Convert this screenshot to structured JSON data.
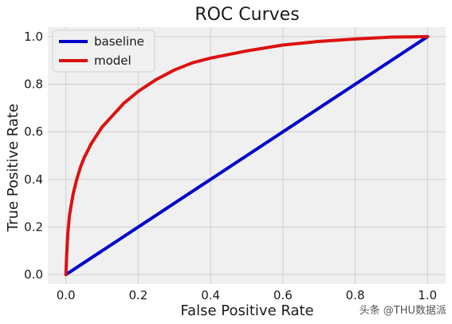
{
  "chart_data": {
    "type": "line",
    "title": "ROC Curves",
    "xlabel": "False Positive Rate",
    "ylabel": "True Positive Rate",
    "xlim": [
      -0.05,
      1.05
    ],
    "ylim": [
      -0.04,
      1.04
    ],
    "xticks": [
      0.0,
      0.2,
      0.4,
      0.6,
      0.8,
      1.0
    ],
    "xtick_labels": [
      "0.0",
      "0.2",
      "0.4",
      "0.6",
      "0.8",
      "1.0"
    ],
    "yticks": [
      0.0,
      0.2,
      0.4,
      0.6,
      0.8,
      1.0
    ],
    "ytick_labels": [
      "0.0",
      "0.2",
      "0.4",
      "0.6",
      "0.8",
      "1.0"
    ],
    "grid": true,
    "legend": "top-left",
    "series": [
      {
        "name": "baseline",
        "color": "#0000cc",
        "x": [
          0.0,
          1.0
        ],
        "y": [
          0.0,
          1.0
        ]
      },
      {
        "name": "model",
        "color": "#dd1111",
        "x": [
          0.0,
          0.002,
          0.005,
          0.01,
          0.02,
          0.03,
          0.04,
          0.05,
          0.07,
          0.1,
          0.13,
          0.16,
          0.2,
          0.25,
          0.3,
          0.35,
          0.4,
          0.5,
          0.6,
          0.7,
          0.8,
          0.9,
          0.95,
          1.0
        ],
        "y": [
          0.0,
          0.08,
          0.17,
          0.25,
          0.34,
          0.4,
          0.45,
          0.49,
          0.55,
          0.62,
          0.67,
          0.72,
          0.77,
          0.82,
          0.86,
          0.89,
          0.91,
          0.94,
          0.965,
          0.98,
          0.99,
          0.998,
          0.999,
          1.0
        ]
      }
    ]
  },
  "watermark": "头条 @THU数据派"
}
